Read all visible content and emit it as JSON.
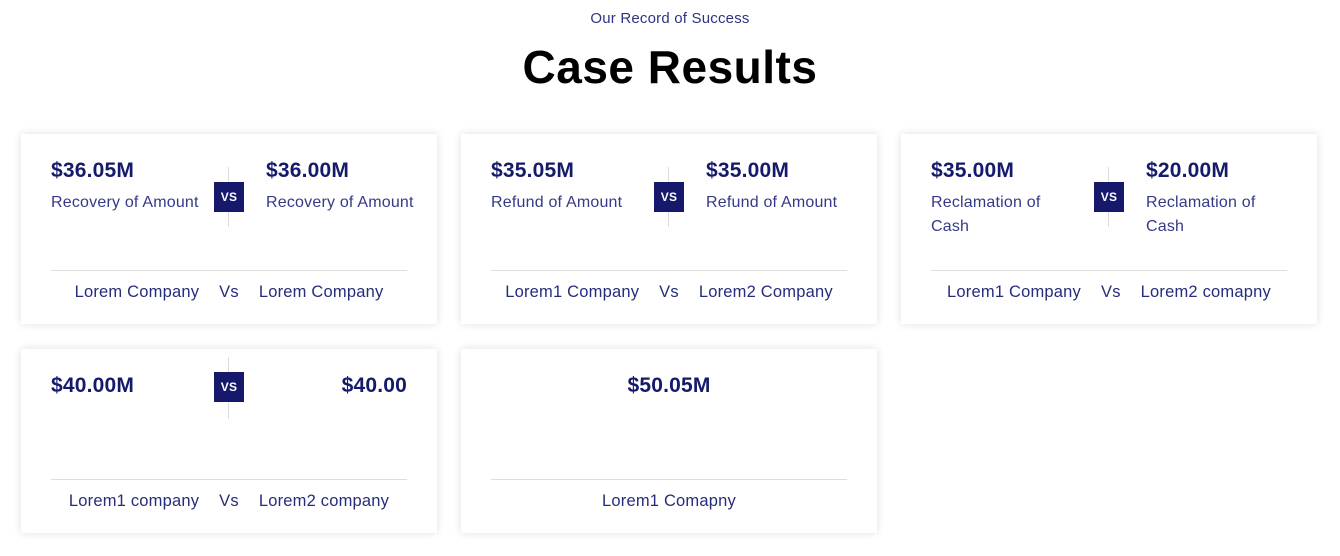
{
  "header": {
    "eyebrow": "Our Record of Success",
    "title": "Case Results"
  },
  "colors": {
    "accent_navy": "#16196b",
    "text_navy": "#151a6a",
    "divider": "#dedede"
  },
  "vs_badge_label": "VS",
  "cards": [
    {
      "left": {
        "value": "$36.05M",
        "label": "Recovery of Amount"
      },
      "right": {
        "value": "$36.00M",
        "label": "Recovery of Amount"
      },
      "footer": {
        "left_company": "Lorem Company",
        "vs": "Vs",
        "right_company": "Lorem Company"
      }
    },
    {
      "left": {
        "value": "$35.05M",
        "label": "Refund of Amount"
      },
      "right": {
        "value": "$35.00M",
        "label": "Refund of Amount"
      },
      "footer": {
        "left_company": "Lorem1 Company",
        "vs": "Vs",
        "right_company": "Lorem2 Company"
      }
    },
    {
      "left": {
        "value": "$35.00M",
        "label": "Reclamation of Cash"
      },
      "right": {
        "value": "$20.00M",
        "label": "Reclamation of Cash"
      },
      "footer": {
        "left_company": "Lorem1 Company",
        "vs": "Vs",
        "right_company": "Lorem2 comapny"
      }
    },
    {
      "left": {
        "value": "$40.00M",
        "label": ""
      },
      "right": {
        "value": "$40.00",
        "label": ""
      },
      "footer": {
        "left_company": "Lorem1 company",
        "vs": "Vs",
        "right_company": "Lorem2 company"
      }
    },
    {
      "single": {
        "value": "$50.05M"
      },
      "footer": {
        "company": "Lorem1 Comapny"
      }
    }
  ]
}
